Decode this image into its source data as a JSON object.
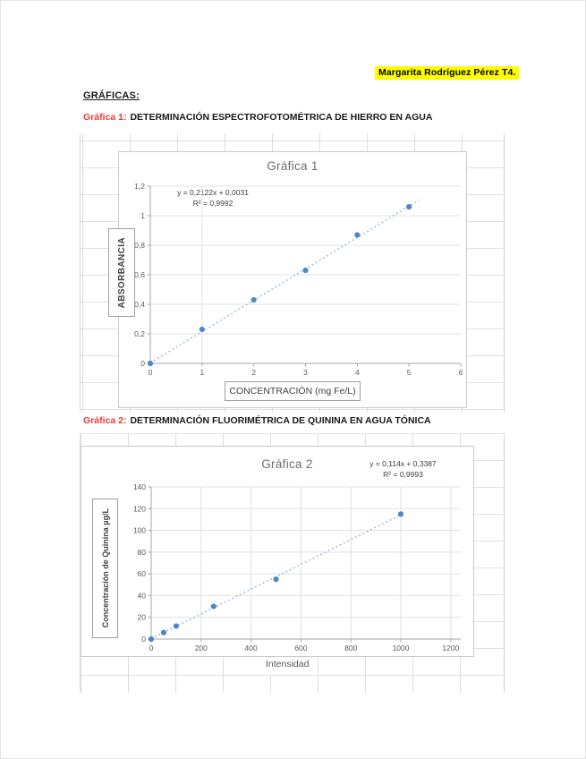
{
  "page": {
    "header_highlight": "Margarita Rodríguez Pérez T4.",
    "section_title": "GRÁFICAS:",
    "highlight_color": "#ffff00"
  },
  "sections": [
    {
      "label": "Gráfica 1:",
      "title": "DETERMINACIÓN ESPECTROFOTOMÉTRICA DE HIERRO EN AGUA"
    },
    {
      "label": "Gráfica 2:",
      "title": "DETERMINACIÓN FLUORIMÉTRICA DE QUININA EN AGUA TÓNICA"
    }
  ],
  "chart_data": [
    {
      "type": "scatter",
      "title": "Gráfica 1",
      "x": [
        0,
        1,
        2,
        3,
        4,
        5
      ],
      "y": [
        0,
        0.23,
        0.43,
        0.63,
        0.87,
        1.06
      ],
      "equation": "y = 0,2122x + 0,0031",
      "r_squared": "R² = 0,9992",
      "xlabel": "CONCENTRACIÓN (mg Fe/L)",
      "ylabel": "ABSORBANCIA",
      "xlim": [
        0,
        6
      ],
      "ylim": [
        0,
        1.2
      ],
      "xtick_values": [
        0,
        1,
        2,
        3,
        4,
        5,
        6
      ],
      "xtick_labels": [
        "0",
        "1",
        "2",
        "3",
        "4",
        "5",
        "6"
      ],
      "ytick_values": [
        0,
        0.2,
        0.4,
        0.6,
        0.8,
        1,
        1.2
      ],
      "ytick_labels": [
        "0",
        "0,2",
        "0,4",
        "0,6",
        "0,8",
        "1",
        "1,2"
      ],
      "xgrid": [
        1
      ],
      "ygrid": [
        0.2,
        0.4,
        0.6,
        0.8,
        1,
        1.2
      ],
      "trendline": {
        "slope": 0.2122,
        "intercept": 0.0031,
        "x_start": 0,
        "x_end": 5.2
      },
      "legend": "none",
      "colors": {
        "marker": "#4e87c6",
        "trend": "#8fb3de",
        "grid": "#e0e0e0",
        "axis": "#a6a6a6",
        "tick_text": "#595959"
      }
    },
    {
      "type": "scatter",
      "title": "Gráfica 2",
      "x": [
        0,
        50,
        100,
        250,
        500,
        1000
      ],
      "y": [
        0,
        6,
        12,
        30,
        55,
        115
      ],
      "equation": "y = 0,114x + 0,3387",
      "r_squared": "R² = 0,9993",
      "xlabel": "Intensidad",
      "ylabel": "Concentración de Quinina µg/L",
      "xlim": [
        0,
        1240
      ],
      "ylim": [
        0,
        140
      ],
      "xtick_values": [
        0,
        200,
        400,
        600,
        800,
        1000,
        1200
      ],
      "xtick_labels": [
        "0",
        "200",
        "400",
        "600",
        "800",
        "1000",
        "1200"
      ],
      "ytick_values": [
        0,
        20,
        40,
        60,
        80,
        100,
        120,
        140
      ],
      "ytick_labels": [
        "0",
        "20",
        "40",
        "60",
        "80",
        "100",
        "120",
        "140"
      ],
      "xgrid": [
        200,
        400,
        600,
        800,
        1000,
        1200
      ],
      "ygrid": [
        20,
        40,
        60,
        80,
        100,
        120,
        140
      ],
      "trendline": {
        "slope": 0.114,
        "intercept": 0.3387,
        "x_start": 0,
        "x_end": 1015
      },
      "legend": "none",
      "colors": {
        "marker": "#4e87c6",
        "trend": "#8fb3de",
        "grid": "#e0e0e0",
        "axis": "#a6a6a6",
        "tick_text": "#595959"
      }
    }
  ]
}
